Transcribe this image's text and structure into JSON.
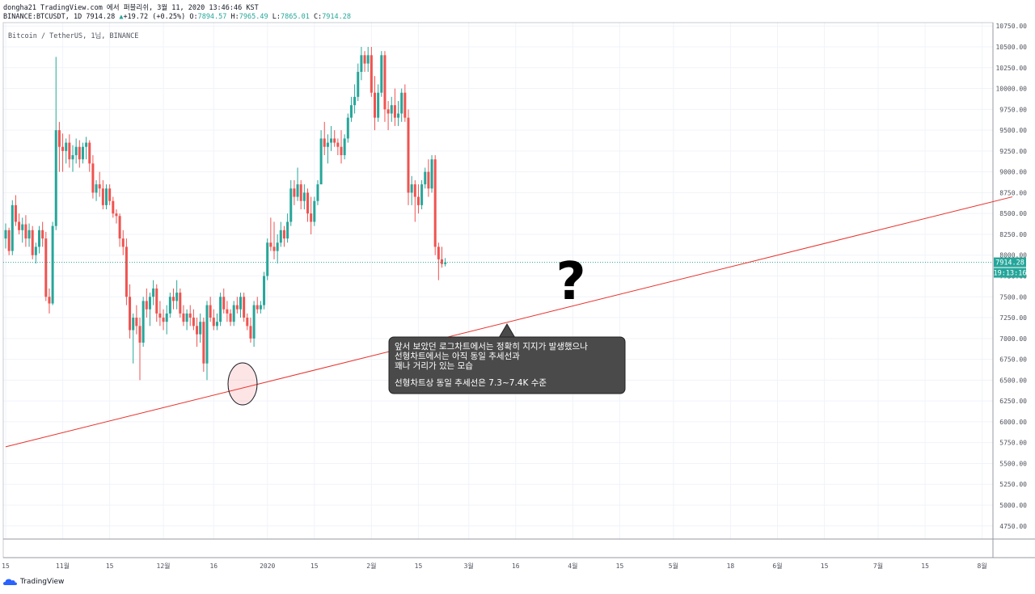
{
  "header": {
    "line1": "dongha21 TradingView.com 에서 퍼블리쉬, 3월 11, 2020 13:46:46 KST",
    "symbol": "BINANCE:BTCUSDT, 1D",
    "last": "7914.28",
    "change": "+19.72 (+0.25%)",
    "open_label": "O:",
    "open": "7894.57",
    "high_label": "H:",
    "high": "7965.49",
    "low_label": "L:",
    "low": "7865.01",
    "close_label": "C:",
    "close": "7914.28"
  },
  "chart_title": "Bitcoin / TetherUS, 1님, BINANCE",
  "price_tag": "7914.28",
  "time_tag": "19:13:16",
  "annotation": {
    "line1": "앞서 보았던 로그차트에서는 정확히 지지가 발생했으나",
    "line2": "선형차트에서는 아직 동일 추세선과",
    "line3": "꽤나 거리가 있는 모습",
    "line4": "선형차트상 동일 추세선은 7.3~7.4K 수준"
  },
  "question_mark": "?",
  "footer": {
    "brand": "TradingView"
  },
  "colors": {
    "up": "#26a69a",
    "down": "#ef5350",
    "trendline": "#e8322c",
    "price_tag": "#26a69a"
  },
  "chart_data": {
    "type": "candlestick",
    "title": "Bitcoin / TetherUS, 1님, BINANCE",
    "ylim": [
      4500,
      10800
    ],
    "y_ticks": [
      10750,
      10500,
      10250,
      10000,
      9750,
      9500,
      9250,
      9000,
      8750,
      8500,
      8250,
      8000,
      7750,
      7500,
      7250,
      7000,
      6750,
      6500,
      6250,
      6000,
      5750,
      5500,
      5250,
      5000,
      4750
    ],
    "x_ticks": [
      {
        "label": "15",
        "day": 0
      },
      {
        "label": "11월",
        "day": 17
      },
      {
        "label": "15",
        "day": 31
      },
      {
        "label": "12월",
        "day": 47
      },
      {
        "label": "16",
        "day": 62
      },
      {
        "label": "2020",
        "day": 78
      },
      {
        "label": "15",
        "day": 92
      },
      {
        "label": "2월",
        "day": 109
      },
      {
        "label": "15",
        "day": 123
      },
      {
        "label": "3월",
        "day": 138
      },
      {
        "label": "16",
        "day": 152
      },
      {
        "label": "4월",
        "day": 169
      },
      {
        "label": "15",
        "day": 183
      },
      {
        "label": "5월",
        "day": 199
      },
      {
        "label": "18",
        "day": 216
      },
      {
        "label": "6월",
        "day": 230
      },
      {
        "label": "15",
        "day": 244
      },
      {
        "label": "7월",
        "day": 260
      },
      {
        "label": "15",
        "day": 274
      },
      {
        "label": "8월",
        "day": 291
      }
    ],
    "candles_ohlc": [
      [
        8200,
        8380,
        8080,
        8300
      ],
      [
        8300,
        8330,
        8000,
        8050
      ],
      [
        8050,
        8660,
        8000,
        8600
      ],
      [
        8600,
        8720,
        8350,
        8400
      ],
      [
        8400,
        8500,
        8250,
        8300
      ],
      [
        8300,
        8450,
        8150,
        8370
      ],
      [
        8370,
        8480,
        8100,
        8200
      ],
      [
        8200,
        8380,
        8100,
        8300
      ],
      [
        8300,
        8350,
        7950,
        8000
      ],
      [
        8000,
        8150,
        7900,
        8100
      ],
      [
        8100,
        8350,
        8020,
        8300
      ],
      [
        8300,
        8400,
        8100,
        8200
      ],
      [
        8200,
        8280,
        7450,
        7500
      ],
      [
        7500,
        7600,
        7300,
        7420
      ],
      [
        7420,
        8400,
        7400,
        8350
      ],
      [
        8350,
        10380,
        8300,
        9500
      ],
      [
        9500,
        9600,
        9000,
        9300
      ],
      [
        9300,
        9460,
        9000,
        9250
      ],
      [
        9250,
        9400,
        9100,
        9350
      ],
      [
        9350,
        9450,
        9050,
        9150
      ],
      [
        9150,
        9320,
        9000,
        9200
      ],
      [
        9200,
        9400,
        9100,
        9300
      ],
      [
        9300,
        9380,
        9050,
        9150
      ],
      [
        9150,
        9350,
        9100,
        9300
      ],
      [
        9300,
        9420,
        9150,
        9350
      ],
      [
        9350,
        9380,
        9000,
        9100
      ],
      [
        9100,
        9200,
        8680,
        8750
      ],
      [
        8750,
        8900,
        8650,
        8850
      ],
      [
        8850,
        9000,
        8700,
        8800
      ],
      [
        8800,
        8900,
        8550,
        8600
      ],
      [
        8600,
        8850,
        8550,
        8800
      ],
      [
        8800,
        8850,
        8600,
        8650
      ],
      [
        8650,
        8700,
        8450,
        8500
      ],
      [
        8500,
        8550,
        8380,
        8470
      ],
      [
        8470,
        8500,
        8100,
        8200
      ],
      [
        8200,
        8300,
        8000,
        8100
      ],
      [
        8100,
        8200,
        7400,
        7500
      ],
      [
        7500,
        7650,
        7000,
        7100
      ],
      [
        7100,
        7300,
        6700,
        7250
      ],
      [
        7250,
        7400,
        7050,
        7150
      ],
      [
        7150,
        7250,
        6500,
        6950
      ],
      [
        6950,
        7500,
        6900,
        7450
      ],
      [
        7450,
        7600,
        7250,
        7350
      ],
      [
        7350,
        7550,
        7150,
        7500
      ],
      [
        7500,
        7700,
        7400,
        7600
      ],
      [
        7600,
        7650,
        7200,
        7300
      ],
      [
        7300,
        7450,
        7150,
        7250
      ],
      [
        7250,
        7350,
        7100,
        7200
      ],
      [
        7200,
        7400,
        7050,
        7300
      ],
      [
        7300,
        7550,
        7250,
        7500
      ],
      [
        7500,
        7600,
        7350,
        7450
      ],
      [
        7450,
        7700,
        7350,
        7550
      ],
      [
        7550,
        7600,
        7250,
        7300
      ],
      [
        7300,
        7400,
        7150,
        7200
      ],
      [
        7200,
        7350,
        7100,
        7300
      ],
      [
        7300,
        7400,
        7150,
        7250
      ],
      [
        7250,
        7350,
        7100,
        7150
      ],
      [
        7150,
        7250,
        6900,
        7050
      ],
      [
        7050,
        7300,
        6950,
        7200
      ],
      [
        7200,
        7250,
        6600,
        6700
      ],
      [
        6700,
        7450,
        6500,
        7400
      ],
      [
        7400,
        7500,
        7200,
        7250
      ],
      [
        7250,
        7350,
        7100,
        7150
      ],
      [
        7150,
        7300,
        7100,
        7200
      ],
      [
        7200,
        7550,
        7150,
        7500
      ],
      [
        7500,
        7600,
        7300,
        7350
      ],
      [
        7350,
        7450,
        7200,
        7300
      ],
      [
        7300,
        7350,
        7150,
        7200
      ],
      [
        7200,
        7450,
        7150,
        7400
      ],
      [
        7400,
        7500,
        7300,
        7350
      ],
      [
        7350,
        7550,
        7250,
        7500
      ],
      [
        7500,
        7550,
        7200,
        7250
      ],
      [
        7250,
        7300,
        7100,
        7150
      ],
      [
        7150,
        7250,
        6950,
        7000
      ],
      [
        7000,
        7450,
        6900,
        7400
      ],
      [
        7400,
        7500,
        7300,
        7350
      ],
      [
        7350,
        7450,
        7300,
        7400
      ],
      [
        7400,
        7800,
        7350,
        7750
      ],
      [
        7750,
        8200,
        7700,
        8150
      ],
      [
        8150,
        8450,
        8050,
        8100
      ],
      [
        8100,
        8400,
        7950,
        8050
      ],
      [
        8050,
        8250,
        7900,
        8150
      ],
      [
        8150,
        8400,
        8100,
        8300
      ],
      [
        8300,
        8350,
        8100,
        8200
      ],
      [
        8200,
        8500,
        8150,
        8400
      ],
      [
        8400,
        8900,
        8350,
        8800
      ],
      [
        8800,
        8900,
        8600,
        8700
      ],
      [
        8700,
        9050,
        8650,
        8850
      ],
      [
        8850,
        8900,
        8550,
        8650
      ],
      [
        8650,
        8850,
        8550,
        8750
      ],
      [
        8750,
        8800,
        8400,
        8500
      ],
      [
        8500,
        8700,
        8250,
        8400
      ],
      [
        8400,
        8700,
        8350,
        8650
      ],
      [
        8650,
        8900,
        8600,
        8850
      ],
      [
        8850,
        9500,
        8850,
        9400
      ],
      [
        9400,
        9600,
        9200,
        9300
      ],
      [
        9300,
        9450,
        9100,
        9350
      ],
      [
        9350,
        9550,
        9250,
        9400
      ],
      [
        9400,
        9500,
        9300,
        9350
      ],
      [
        9350,
        9400,
        9200,
        9300
      ],
      [
        9300,
        9500,
        9100,
        9200
      ],
      [
        9200,
        9450,
        9150,
        9400
      ],
      [
        9400,
        9700,
        9350,
        9650
      ],
      [
        9650,
        9900,
        9600,
        9800
      ],
      [
        9800,
        10050,
        9700,
        9900
      ],
      [
        9900,
        10300,
        9850,
        10200
      ],
      [
        10200,
        10500,
        10100,
        10400
      ],
      [
        10400,
        10450,
        10200,
        10300
      ],
      [
        10300,
        10500,
        10200,
        10400
      ],
      [
        10400,
        10500,
        9900,
        9950
      ],
      [
        9950,
        10150,
        9500,
        9650
      ],
      [
        9650,
        10050,
        9600,
        9950
      ],
      [
        9950,
        10450,
        9900,
        10400
      ],
      [
        10400,
        10450,
        9600,
        9750
      ],
      [
        9750,
        9850,
        9500,
        9700
      ],
      [
        9700,
        9900,
        9600,
        9800
      ],
      [
        9800,
        10000,
        9550,
        9650
      ],
      [
        9650,
        9850,
        9550,
        9700
      ],
      [
        9700,
        10000,
        9600,
        9950
      ],
      [
        9950,
        10050,
        9600,
        9650
      ],
      [
        9650,
        9750,
        8600,
        8750
      ],
      [
        8750,
        8950,
        8600,
        8850
      ],
      [
        8850,
        8900,
        8400,
        8700
      ],
      [
        8700,
        8850,
        8500,
        8600
      ],
      [
        8600,
        8900,
        8550,
        8850
      ],
      [
        8850,
        9050,
        8800,
        9000
      ],
      [
        9000,
        9150,
        8700,
        8800
      ],
      [
        8800,
        9200,
        8750,
        9150
      ],
      [
        9150,
        9200,
        8000,
        8100
      ],
      [
        8100,
        8150,
        7700,
        7950
      ],
      [
        7950,
        8100,
        7850,
        7894
      ],
      [
        7894,
        7965,
        7865,
        7914
      ]
    ],
    "trendline": {
      "x0_day": 0,
      "y0": 5700,
      "x1_day": 300,
      "y1": 8700,
      "color": "#e8322c"
    },
    "current_price": 7914.28
  }
}
